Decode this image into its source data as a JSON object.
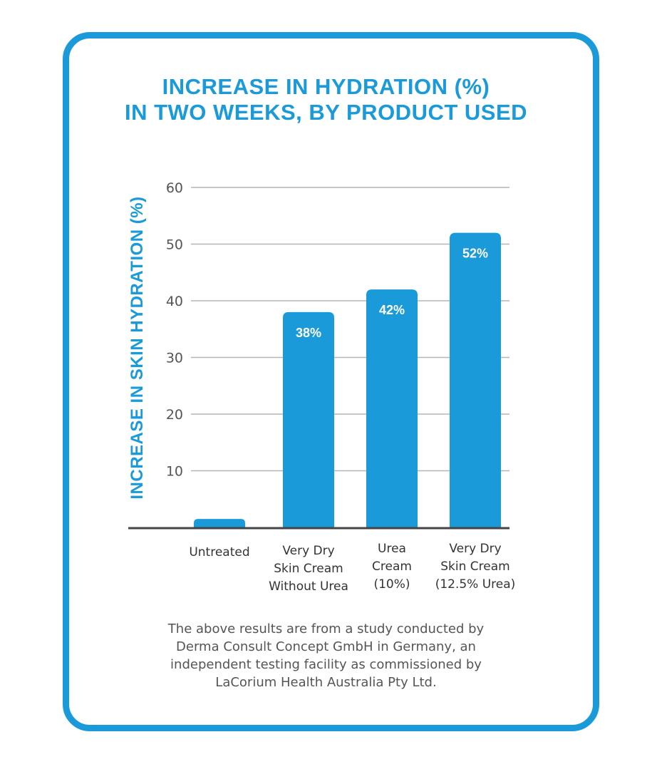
{
  "chart_data": {
    "type": "bar",
    "title_lines": [
      "INCREASE IN HYDRATION (%)",
      "IN TWO WEEKS, BY PRODUCT USED"
    ],
    "ylabel": "INCREASE IN SKIN HYDRATION (%)",
    "xlabel": "",
    "ylim": [
      0,
      60
    ],
    "yticks": [
      60,
      50,
      40,
      30,
      20,
      10
    ],
    "grid": true,
    "categories": [
      {
        "id": "untreated",
        "lines": [
          "Untreated"
        ]
      },
      {
        "id": "very-dry-without-urea",
        "lines": [
          "Very Dry",
          "Skin Cream",
          "Without Urea"
        ]
      },
      {
        "id": "urea-cream-10",
        "lines": [
          "Urea",
          "Cream",
          "(10%)"
        ]
      },
      {
        "id": "very-dry-12-5-urea",
        "lines": [
          "Very Dry",
          "Skin Cream",
          "(12.5% Urea)"
        ]
      }
    ],
    "values": [
      1.5,
      38,
      42,
      52
    ],
    "data_labels": [
      "",
      "38%",
      "42%",
      "52%"
    ]
  },
  "footnote_lines": [
    "The above results are from a study conducted by",
    "Derma Consult Concept GmbH in Germany, an",
    "independent testing facility as commissioned by",
    "LaCorium Health Australia Pty Ltd."
  ],
  "colors": {
    "accent": "#1a9ad9",
    "grid": "#b5b5b5",
    "axis": "#454545",
    "tick_text": "#555555",
    "category_text": "#333333",
    "bar_label": "#ffffff"
  }
}
